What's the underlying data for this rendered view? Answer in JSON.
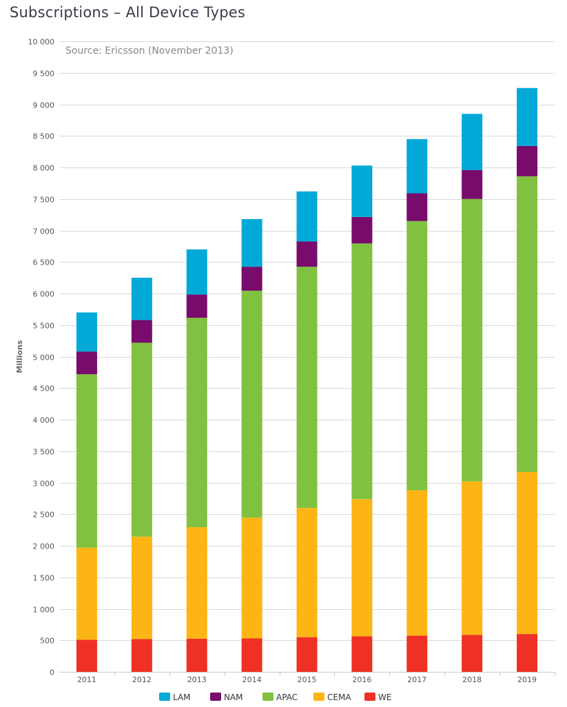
{
  "chart_data": {
    "type": "bar",
    "stacked": true,
    "title": "Subscriptions – All Device Types",
    "subtitle": "Source: Ericsson (November 2013)",
    "ylabel": "Millions",
    "xlabel": "",
    "ylim": [
      0,
      10000
    ],
    "yticks": [
      0,
      500,
      1000,
      1500,
      2000,
      2500,
      3000,
      3500,
      4000,
      4500,
      5000,
      5500,
      6000,
      6500,
      7000,
      7500,
      8000,
      8500,
      9000,
      9500,
      10000
    ],
    "ytick_labels": [
      "0",
      "500",
      "1 000",
      "1 500",
      "2 000",
      "2 500",
      "3 000",
      "3 500",
      "4 000",
      "4 500",
      "5 000",
      "5 500",
      "6 000",
      "6 500",
      "7 000",
      "7 500",
      "8 000",
      "8 500",
      "9 000",
      "9 500",
      "10 000"
    ],
    "grid": true,
    "legend_position": "bottom-center",
    "categories": [
      "2011",
      "2012",
      "2013",
      "2014",
      "2015",
      "2016",
      "2017",
      "2018",
      "2019"
    ],
    "series": [
      {
        "name": "WE",
        "color": "#ee3124",
        "values": [
          510,
          520,
          525,
          530,
          550,
          565,
          575,
          585,
          600
        ]
      },
      {
        "name": "CEMA",
        "color": "#fdb515",
        "values": [
          1460,
          1625,
          1770,
          1915,
          2050,
          2175,
          2305,
          2435,
          2570
        ]
      },
      {
        "name": "APAC",
        "color": "#80c141",
        "values": [
          2750,
          3075,
          3320,
          3600,
          3825,
          4055,
          4270,
          4480,
          4690
        ]
      },
      {
        "name": "NAM",
        "color": "#780b6b",
        "values": [
          360,
          360,
          370,
          380,
          400,
          420,
          440,
          460,
          480
        ]
      },
      {
        "name": "LAM",
        "color": "#00a9d8",
        "values": [
          620,
          670,
          715,
          755,
          795,
          815,
          860,
          890,
          920
        ]
      }
    ],
    "legend_order": [
      "LAM",
      "NAM",
      "APAC",
      "CEMA",
      "WE"
    ]
  }
}
